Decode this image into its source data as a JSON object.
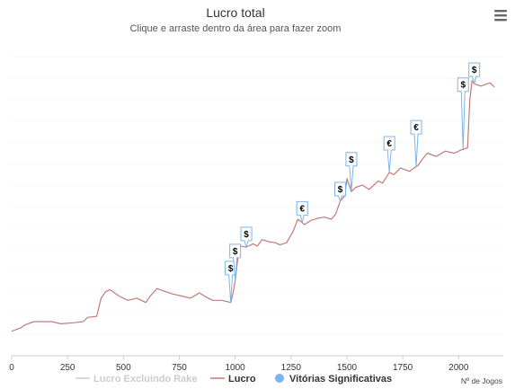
{
  "chart_data": {
    "type": "line",
    "title": "Lucro total",
    "subtitle": "Clique e arraste dentro da área para fazer zoom",
    "xlabel": "Nº de Jogos",
    "ylabel": "",
    "xlim": [
      0,
      2200
    ],
    "ylim": [
      -2,
      28
    ],
    "x_ticks": [
      0,
      250,
      500,
      750,
      1000,
      1250,
      1500,
      1750,
      2000
    ],
    "y_gridlines": [
      0,
      2,
      4,
      6,
      8,
      10,
      12,
      14,
      16,
      18,
      20,
      22,
      24,
      26
    ],
    "grid": true,
    "legend": "bottom",
    "colors": {
      "lucro": "#c07a7a",
      "lucro_excluindo_rake": "#cccccc",
      "vitorias": "#7cb5ec",
      "flag_border": "#7cb5ec",
      "grid": "#e6e6e6"
    },
    "series": [
      {
        "name": "Lucro",
        "x": [
          0,
          40,
          60,
          100,
          130,
          180,
          220,
          280,
          320,
          340,
          380,
          400,
          420,
          440,
          480,
          520,
          560,
          600,
          620,
          650,
          690,
          720,
          760,
          800,
          840,
          870,
          900,
          940,
          980,
          990,
          1000,
          1010,
          1020,
          1050,
          1080,
          1100,
          1120,
          1150,
          1180,
          1200,
          1230,
          1260,
          1280,
          1300,
          1310,
          1340,
          1370,
          1400,
          1430,
          1450,
          1470,
          1490,
          1500,
          1520,
          1540,
          1570,
          1600,
          1640,
          1660,
          1690,
          1710,
          1740,
          1780,
          1820,
          1840,
          1860,
          1900,
          1940,
          1980,
          2010,
          2040,
          2050,
          2060,
          2070,
          2100,
          2140,
          2160
        ],
        "y": [
          0.3,
          0.6,
          0.9,
          1.2,
          1.2,
          1.2,
          1.0,
          1.1,
          1.2,
          1.6,
          1.7,
          3.4,
          4.0,
          4.2,
          3.6,
          3.2,
          3.4,
          3.0,
          3.6,
          4.3,
          4.0,
          3.8,
          3.6,
          3.4,
          3.9,
          3.5,
          3.2,
          3.2,
          3.0,
          3.8,
          5.0,
          6.8,
          8.3,
          8.2,
          8.5,
          8.3,
          8.9,
          8.7,
          8.6,
          8.4,
          8.6,
          9.7,
          10.8,
          10.5,
          10.3,
          10.7,
          10.9,
          11.0,
          10.8,
          11.3,
          12.5,
          13.0,
          14.6,
          13.4,
          13.8,
          14.0,
          13.6,
          14.4,
          14.2,
          15.2,
          15.0,
          15.6,
          15.3,
          15.9,
          16.5,
          17.0,
          16.7,
          17.2,
          17.0,
          17.3,
          17.5,
          22.0,
          23.8,
          23.5,
          23.3,
          23.6,
          23.2
        ]
      },
      {
        "name": "Lucro Excluindo Rake",
        "x": [],
        "y": [],
        "hidden": true
      }
    ],
    "flags": [
      {
        "label": "$",
        "x": 980,
        "y": 5.6
      },
      {
        "label": "$",
        "x": 1000,
        "y": 7.2
      },
      {
        "label": "$",
        "x": 1050,
        "y": 8.8
      },
      {
        "label": "€",
        "x": 1300,
        "y": 11.2
      },
      {
        "label": "$",
        "x": 1470,
        "y": 13.0
      },
      {
        "label": "$",
        "x": 1520,
        "y": 15.8
      },
      {
        "label": "€",
        "x": 1690,
        "y": 17.3
      },
      {
        "label": "€",
        "x": 1810,
        "y": 18.8
      },
      {
        "label": "$",
        "x": 2020,
        "y": 22.8
      },
      {
        "label": "$",
        "x": 2070,
        "y": 24.2
      }
    ],
    "legend_items": [
      {
        "name": "Lucro Excluindo Rake",
        "symbol": "line",
        "state": "hidden"
      },
      {
        "name": "Lucro",
        "symbol": "line",
        "state": "visible"
      },
      {
        "name": "Vitórias Significativas",
        "symbol": "circle",
        "state": "visible"
      }
    ]
  }
}
